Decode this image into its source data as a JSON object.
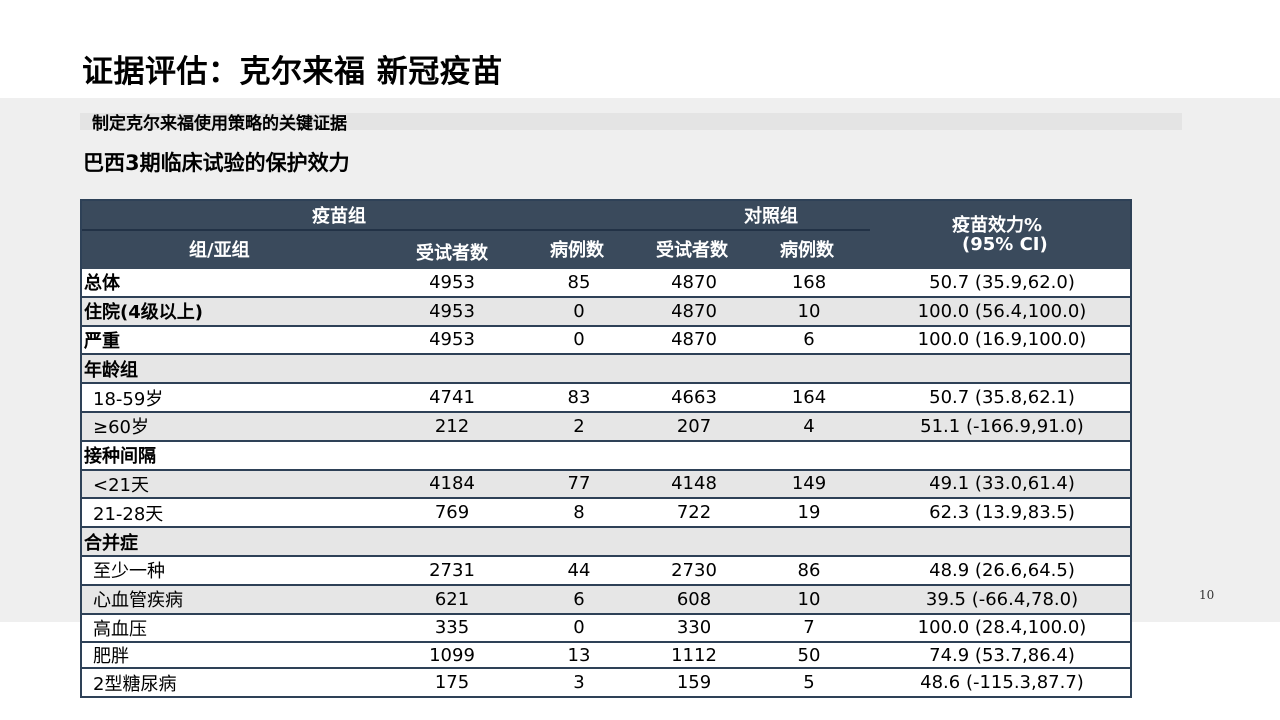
{
  "slide": {
    "title": "证据评估：克尔来福 新冠疫苗",
    "subtitle": "制定克尔来福使用策略的关键证据",
    "section_heading": "巴西3期临床试验的保护效力",
    "page_number": "10"
  },
  "table": {
    "header": {
      "vaccine_group": "疫苗组",
      "control_group": "对照组",
      "group_subgroup": "组/亚组",
      "subjects_v": "受试者数",
      "cases_v": "病例数",
      "subjects_c": "受试者数",
      "cases_c": "病例数",
      "efficacy_line1": "疫苗效力%",
      "efficacy_line2": "(95% CI)"
    },
    "rows": [
      {
        "label": "总体",
        "v_subjects": "4953",
        "v_cases": "85",
        "c_subjects": "4870",
        "c_cases": "168",
        "efficacy": "50.7 (35.9,62.0)"
      },
      {
        "label": "住院(4级以上)",
        "v_subjects": "4953",
        "v_cases": "0",
        "c_subjects": "4870",
        "c_cases": "10",
        "efficacy": "100.0 (56.4,100.0)"
      },
      {
        "label": "严重",
        "v_subjects": "4953",
        "v_cases": "0",
        "c_subjects": "4870",
        "c_cases": "6",
        "efficacy": "100.0 (16.9,100.0)"
      },
      {
        "label": "年龄组"
      },
      {
        "label": "18-59岁",
        "v_subjects": "4741",
        "v_cases": "83",
        "c_subjects": "4663",
        "c_cases": "164",
        "efficacy": "50.7 (35.8,62.1)"
      },
      {
        "label": "≥60岁",
        "v_subjects": "212",
        "v_cases": "2",
        "c_subjects": "207",
        "c_cases": "4",
        "efficacy": "51.1 (-166.9,91.0)"
      },
      {
        "label": "接种间隔"
      },
      {
        "label": "<21天",
        "v_subjects": "4184",
        "v_cases": "77",
        "c_subjects": "4148",
        "c_cases": "149",
        "efficacy": "49.1 (33.0,61.4)"
      },
      {
        "label": "21-28天",
        "v_subjects": "769",
        "v_cases": "8",
        "c_subjects": "722",
        "c_cases": "19",
        "efficacy": "62.3 (13.9,83.5)"
      },
      {
        "label": "合并症"
      },
      {
        "label": "至少一种",
        "v_subjects": "2731",
        "v_cases": "44",
        "c_subjects": "2730",
        "c_cases": "86",
        "efficacy": "48.9 (26.6,64.5)"
      },
      {
        "label": "心血管疾病",
        "v_subjects": "621",
        "v_cases": "6",
        "c_subjects": "608",
        "c_cases": "10",
        "efficacy": "39.5 (-66.4,78.0)"
      },
      {
        "label": "高血压",
        "v_subjects": "335",
        "v_cases": "0",
        "c_subjects": "330",
        "c_cases": "7",
        "efficacy": "100.0 (28.4,100.0)"
      },
      {
        "label": "肥胖",
        "v_subjects": "1099",
        "v_cases": "13",
        "c_subjects": "1112",
        "c_cases": "50",
        "efficacy": "74.9 (53.7,86.4)"
      },
      {
        "label": "2型糖尿病",
        "v_subjects": "175",
        "v_cases": "3",
        "c_subjects": "159",
        "c_cases": "5",
        "efficacy": "48.6 (-115.3,87.7)"
      }
    ]
  }
}
